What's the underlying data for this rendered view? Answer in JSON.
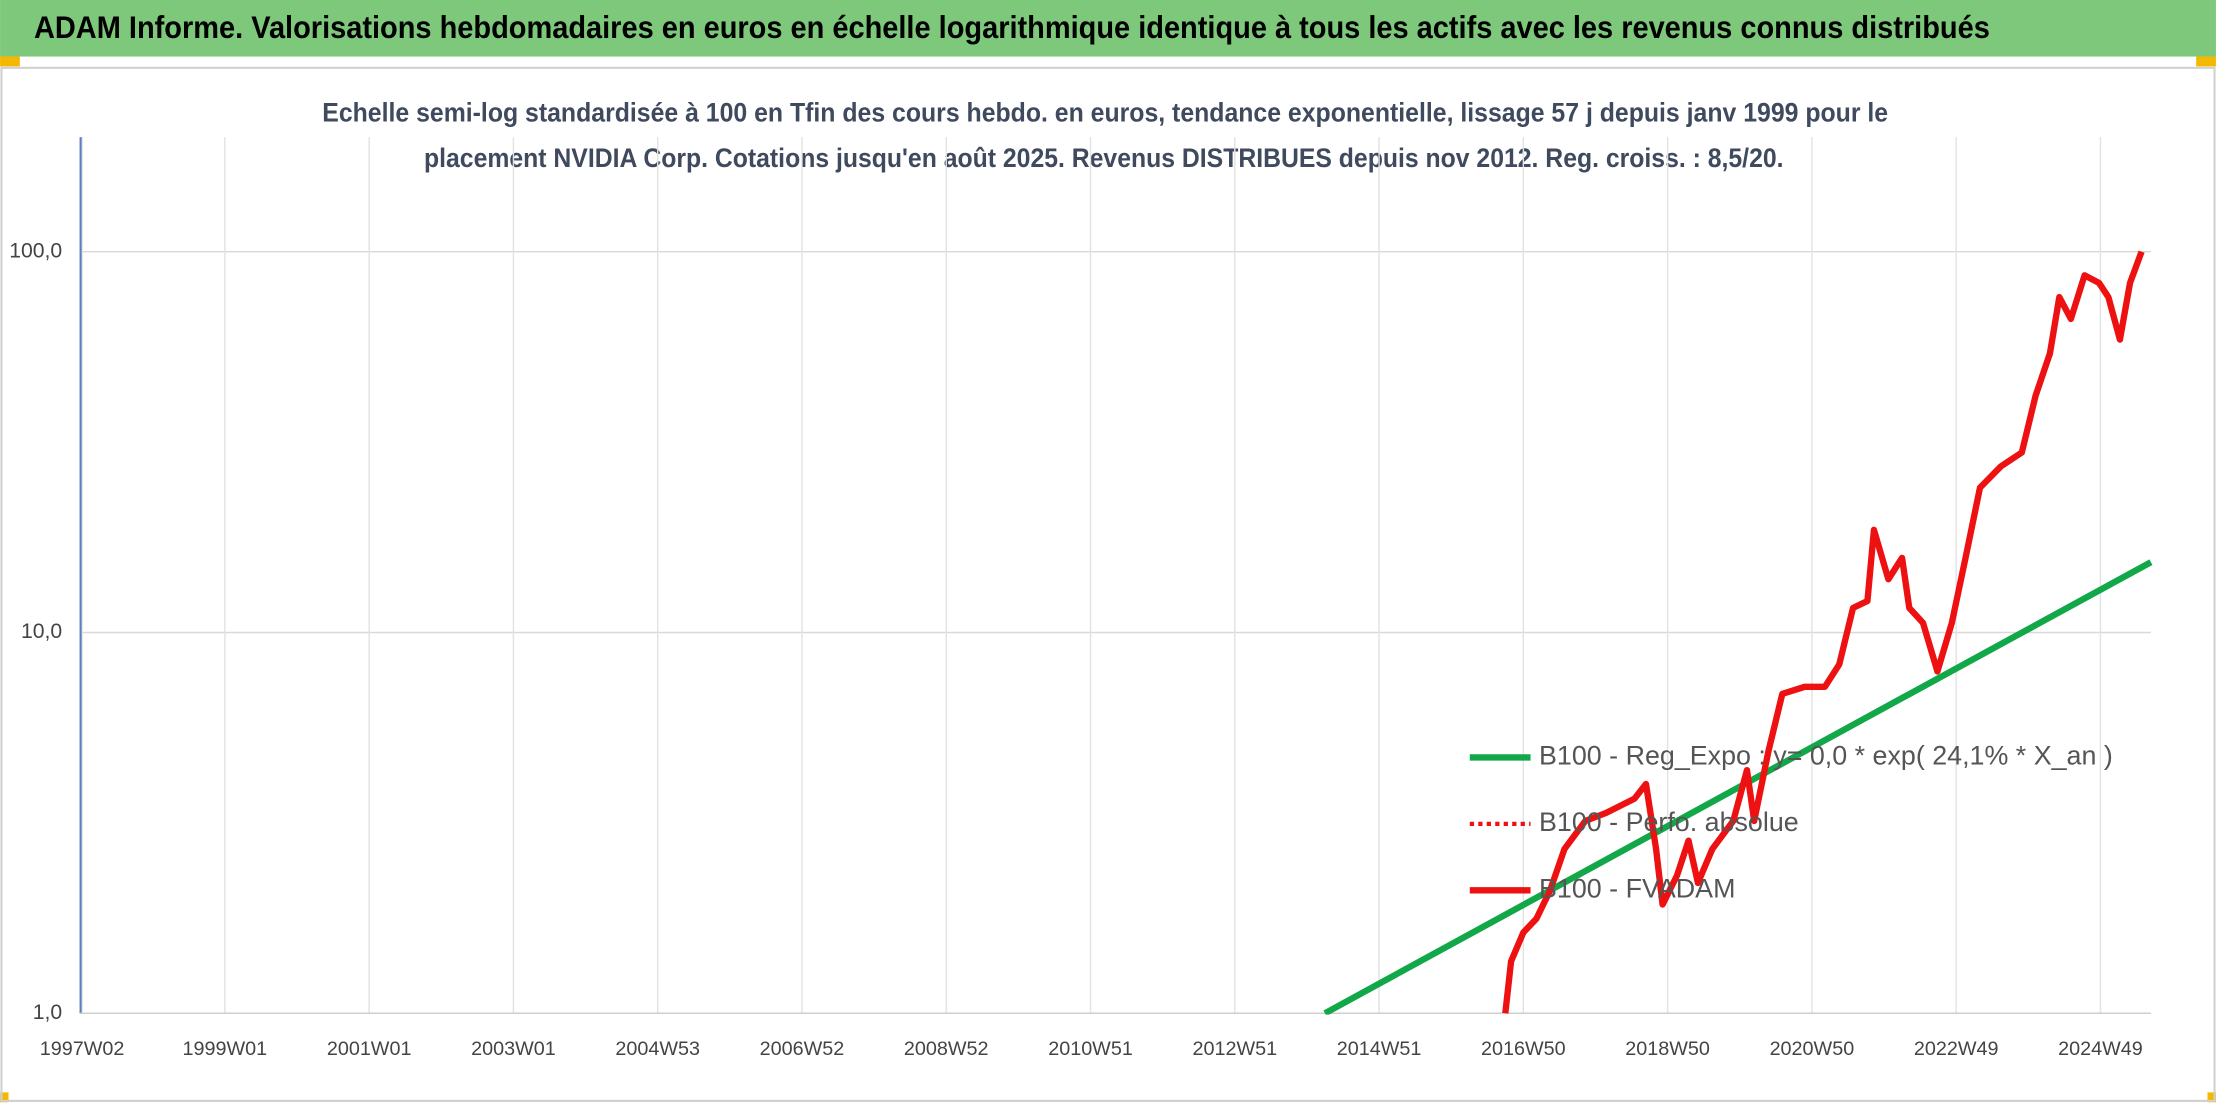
{
  "chart_data": {
    "type": "line",
    "banner": "ADAM Informe. Valorisations hebdomadaires en euros en échelle logarithmique identique à tous les actifs avec les revenus connus distribués",
    "title": [
      "Echelle semi-log standardisée à 100 en Tfin des cours hebdo. en euros, tendance exponentielle, lissage 57 j depuis janv 1999 pour le",
      "placement NVIDIA Corp. Cotations jusqu'en août 2025. Revenus DISTRIBUES depuis nov 2012. Reg. croiss. : 8,5/20."
    ],
    "log_y": true,
    "grid": true,
    "legend": "lower-right",
    "xlim": [
      1997.0,
      2025.7
    ],
    "xticks": [
      {
        "value": 1997.02,
        "label": "1997W02"
      },
      {
        "value": 1999.0,
        "label": "1999W01"
      },
      {
        "value": 2001.0,
        "label": "2001W01"
      },
      {
        "value": 2003.0,
        "label": "2003W01"
      },
      {
        "value": 2005.0,
        "label": "2004W53"
      },
      {
        "value": 2007.0,
        "label": "2006W52"
      },
      {
        "value": 2009.0,
        "label": "2008W52"
      },
      {
        "value": 2011.0,
        "label": "2010W51"
      },
      {
        "value": 2013.0,
        "label": "2012W51"
      },
      {
        "value": 2015.0,
        "label": "2014W51"
      },
      {
        "value": 2017.0,
        "label": "2016W50"
      },
      {
        "value": 2019.0,
        "label": "2018W50"
      },
      {
        "value": 2021.0,
        "label": "2020W50"
      },
      {
        "value": 2023.0,
        "label": "2022W49"
      },
      {
        "value": 2025.0,
        "label": "2024W49"
      }
    ],
    "ylim": [
      1,
      200
    ],
    "yticks": [
      {
        "value": 1,
        "label": "1,0"
      },
      {
        "value": 10,
        "label": "10,0"
      },
      {
        "value": 100,
        "label": "100,0"
      }
    ],
    "series": [
      {
        "name": "B100 - Reg_Expo : y= 0,0 * exp( 24,1% *  X_an )",
        "color": "#12a84a",
        "style": "solid",
        "x": [
          2014.25,
          2025.7
        ],
        "values": [
          1.0,
          15.3
        ]
      },
      {
        "name": "B100 - Perfo. absolue",
        "color": "#ee1111",
        "style": "dotted",
        "x": [],
        "values": []
      },
      {
        "name": "B100 - FVADAM",
        "color": "#ee1111",
        "style": "solid",
        "x": [
          2016.75,
          2016.83,
          2017.0,
          2017.18,
          2017.37,
          2017.57,
          2017.86,
          2018.15,
          2018.54,
          2018.7,
          2018.84,
          2018.93,
          2019.13,
          2019.29,
          2019.42,
          2019.62,
          2019.91,
          2020.1,
          2020.2,
          2020.4,
          2020.59,
          2020.9,
          2021.18,
          2021.38,
          2021.57,
          2021.77,
          2021.86,
          2022.06,
          2022.25,
          2022.35,
          2022.54,
          2022.74,
          2022.94,
          2023.13,
          2023.33,
          2023.62,
          2023.91,
          2024.1,
          2024.3,
          2024.43,
          2024.59,
          2024.78,
          2024.98,
          2025.11,
          2025.27,
          2025.41,
          2025.57
        ],
        "values": [
          1.0,
          1.37,
          1.63,
          1.77,
          2.1,
          2.7,
          3.2,
          3.36,
          3.66,
          4.0,
          2.7,
          1.93,
          2.3,
          2.84,
          2.2,
          2.7,
          3.2,
          4.35,
          3.2,
          4.9,
          6.9,
          7.2,
          7.2,
          8.25,
          11.6,
          12.1,
          18.6,
          13.8,
          15.7,
          11.6,
          10.6,
          7.9,
          10.6,
          15.7,
          24.0,
          27.3,
          29.7,
          41.8,
          54.1,
          76.0,
          66.6,
          86.7,
          82.8,
          76.0,
          58.8,
          82.8,
          100.0
        ]
      }
    ]
  }
}
